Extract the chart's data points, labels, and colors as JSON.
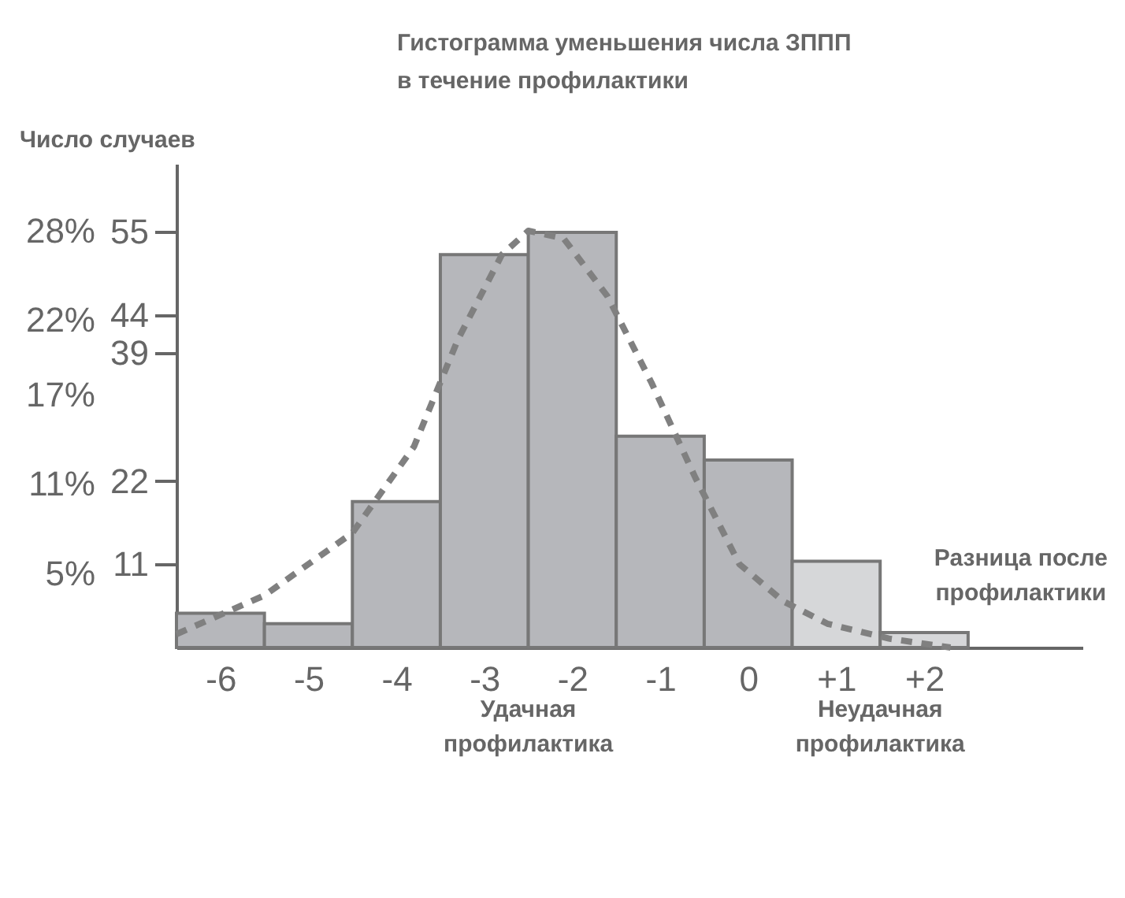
{
  "chart_data": {
    "type": "histogram",
    "title": "Гистограмма уменьшения числа ЗППП\nв течение профилактики",
    "y2label": "Число случаев",
    "bins": [
      -6.5,
      -5.5,
      -4.5,
      -3.5,
      -2.5,
      -1.5,
      -0.5,
      0.5,
      1.5,
      2.5
    ],
    "values": [
      2.3,
      1.6,
      9.8,
      26.4,
      27.9,
      14.2,
      12.6,
      5.8,
      1.0
    ],
    "colors": [
      "#b6b7bb",
      "#b6b7bb",
      "#b6b7bb",
      "#b6b7bb",
      "#b6b7bb",
      "#b6b7bb",
      "#b6b7bb",
      "#d6d7d9",
      "#d6d7d9"
    ],
    "series": [
      {
        "type": "line",
        "color": "#808080",
        "line_style": "dashed",
        "x": [
          -6.5,
          -5.5,
          -4.5,
          -3.8,
          -3.3,
          -2.8,
          -2.5,
          -2.1,
          -1.6,
          -1.1,
          -0.6,
          -0.1,
          0.4,
          0.9,
          1.6,
          2.3
        ],
        "values": [
          0.9,
          3.5,
          7.7,
          13.5,
          20.7,
          26.4,
          28,
          27.5,
          23.6,
          17.8,
          11.4,
          5.6,
          3.1,
          1.6,
          0.6,
          0
        ]
      }
    ],
    "xlim": [
      -6.5,
      3.8
    ],
    "xticks": [
      -6,
      -5,
      -4,
      -3,
      -2,
      -1,
      0,
      {
        "value": 1,
        "label": "+1"
      },
      {
        "value": 2,
        "label": "+2"
      }
    ],
    "ylim": [
      0,
      32.5
    ],
    "yticks": [
      {
        "value": 5,
        "label": "5%"
      },
      {
        "value": 11,
        "label": "11%"
      },
      {
        "value": 17,
        "label": "17%"
      },
      {
        "value": 22,
        "label": "22%"
      },
      {
        "value": 28,
        "label": "28%"
      }
    ],
    "y2lim": [
      0,
      64
    ],
    "y2ticks": [
      11,
      22,
      39,
      44,
      55
    ],
    "annotations": [
      "Удачная\nпрофилактика",
      "Неудачная\nпрофилактика",
      "Разница после\nпрофилактики"
    ],
    "grid": false
  }
}
